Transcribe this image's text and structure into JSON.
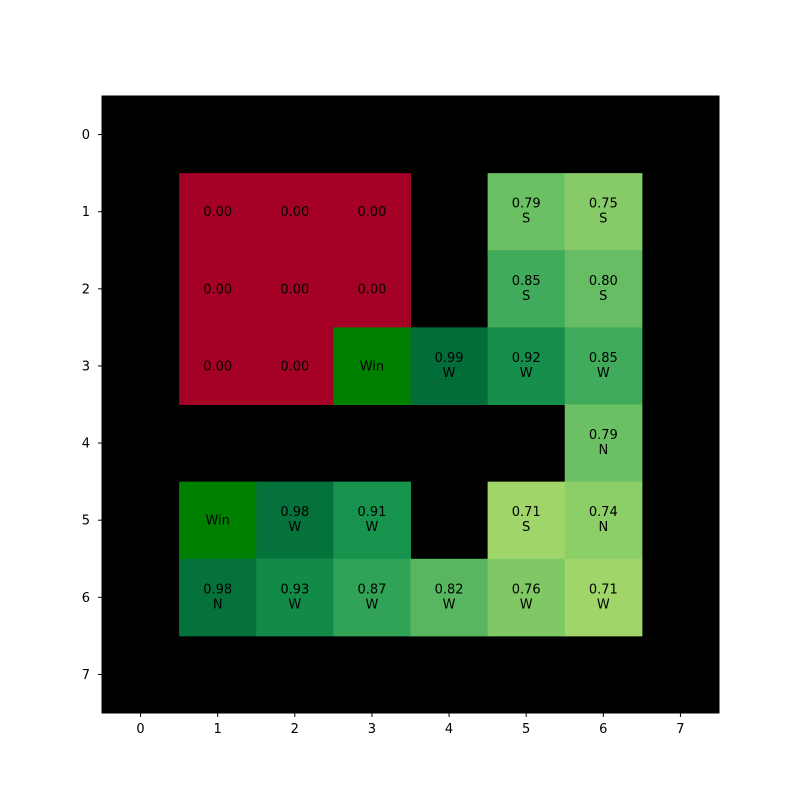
{
  "chart_data": {
    "type": "heatmap",
    "title": "",
    "xlabel": "",
    "ylabel": "",
    "x_ticks": [
      "0",
      "1",
      "2",
      "3",
      "4",
      "5",
      "6",
      "7"
    ],
    "y_ticks": [
      "0",
      "1",
      "2",
      "3",
      "4",
      "5",
      "6",
      "7"
    ],
    "grid": false,
    "colors": {
      "wall": "#000000",
      "zero": "#a50026",
      "win": "#008000",
      "scale": [
        {
          "v": 0.7,
          "c": "#a6d96a"
        },
        {
          "v": 0.8,
          "c": "#66bd63"
        },
        {
          "v": 0.9,
          "c": "#1a9850"
        },
        {
          "v": 1.0,
          "c": "#006837"
        }
      ]
    },
    "cells": [
      {
        "row": 1,
        "col": 1,
        "kind": "zero",
        "label": "0.00",
        "value": 0.0
      },
      {
        "row": 1,
        "col": 2,
        "kind": "zero",
        "label": "0.00",
        "value": 0.0
      },
      {
        "row": 1,
        "col": 3,
        "kind": "zero",
        "label": "0.00",
        "value": 0.0
      },
      {
        "row": 1,
        "col": 5,
        "kind": "value",
        "label": "0.79",
        "dir": "S",
        "value": 0.79
      },
      {
        "row": 1,
        "col": 6,
        "kind": "value",
        "label": "0.75",
        "dir": "S",
        "value": 0.75
      },
      {
        "row": 2,
        "col": 1,
        "kind": "zero",
        "label": "0.00",
        "value": 0.0
      },
      {
        "row": 2,
        "col": 2,
        "kind": "zero",
        "label": "0.00",
        "value": 0.0
      },
      {
        "row": 2,
        "col": 3,
        "kind": "zero",
        "label": "0.00",
        "value": 0.0
      },
      {
        "row": 2,
        "col": 5,
        "kind": "value",
        "label": "0.85",
        "dir": "S",
        "value": 0.85
      },
      {
        "row": 2,
        "col": 6,
        "kind": "value",
        "label": "0.80",
        "dir": "S",
        "value": 0.8
      },
      {
        "row": 3,
        "col": 1,
        "kind": "zero",
        "label": "0.00",
        "value": 0.0
      },
      {
        "row": 3,
        "col": 2,
        "kind": "zero",
        "label": "0.00",
        "value": 0.0
      },
      {
        "row": 3,
        "col": 3,
        "kind": "win",
        "label": "Win"
      },
      {
        "row": 3,
        "col": 4,
        "kind": "value",
        "label": "0.99",
        "dir": "W",
        "value": 0.99
      },
      {
        "row": 3,
        "col": 5,
        "kind": "value",
        "label": "0.92",
        "dir": "W",
        "value": 0.92
      },
      {
        "row": 3,
        "col": 6,
        "kind": "value",
        "label": "0.85",
        "dir": "W",
        "value": 0.85
      },
      {
        "row": 4,
        "col": 6,
        "kind": "value",
        "label": "0.79",
        "dir": "N",
        "value": 0.79
      },
      {
        "row": 5,
        "col": 1,
        "kind": "win",
        "label": "Win"
      },
      {
        "row": 5,
        "col": 2,
        "kind": "value",
        "label": "0.98",
        "dir": "W",
        "value": 0.98
      },
      {
        "row": 5,
        "col": 3,
        "kind": "value",
        "label": "0.91",
        "dir": "W",
        "value": 0.91
      },
      {
        "row": 5,
        "col": 5,
        "kind": "value",
        "label": "0.71",
        "dir": "S",
        "value": 0.71
      },
      {
        "row": 5,
        "col": 6,
        "kind": "value",
        "label": "0.74",
        "dir": "N",
        "value": 0.74
      },
      {
        "row": 6,
        "col": 1,
        "kind": "value",
        "label": "0.98",
        "dir": "N",
        "value": 0.98
      },
      {
        "row": 6,
        "col": 2,
        "kind": "value",
        "label": "0.93",
        "dir": "W",
        "value": 0.93
      },
      {
        "row": 6,
        "col": 3,
        "kind": "value",
        "label": "0.87",
        "dir": "W",
        "value": 0.87
      },
      {
        "row": 6,
        "col": 4,
        "kind": "value",
        "label": "0.82",
        "dir": "W",
        "value": 0.82
      },
      {
        "row": 6,
        "col": 5,
        "kind": "value",
        "label": "0.76",
        "dir": "W",
        "value": 0.76
      },
      {
        "row": 6,
        "col": 6,
        "kind": "value",
        "label": "0.71",
        "dir": "W",
        "value": 0.71
      }
    ]
  }
}
